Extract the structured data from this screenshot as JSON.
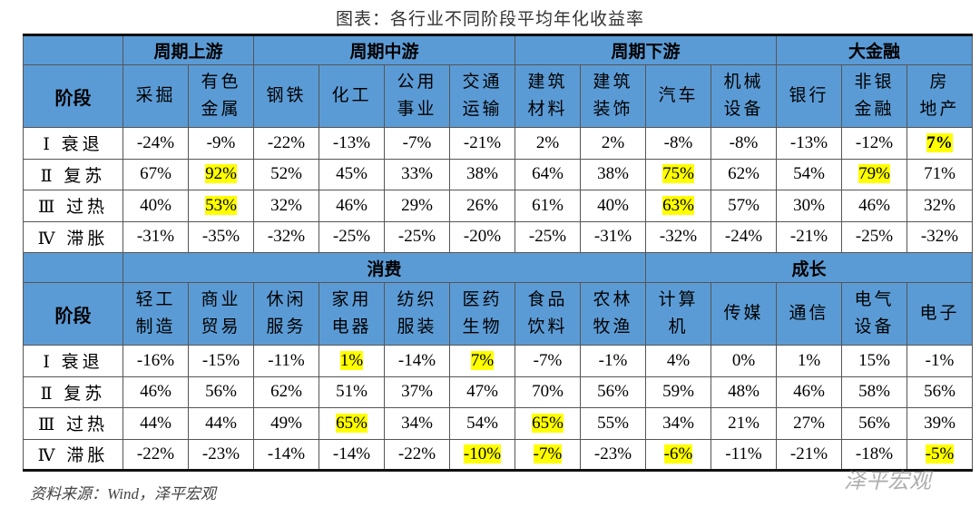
{
  "title": "图表：各行业不同阶段平均年化收益率",
  "source": "资料来源：Wind，泽平宏观",
  "watermark": "泽平宏观",
  "table": {
    "sections": [
      {
        "stage_header": "阶段",
        "groups": [
          {
            "label": "周期上游",
            "columns": [
              [
                "采掘"
              ],
              [
                "有色",
                "金属"
              ]
            ]
          },
          {
            "label": "周期中游",
            "columns": [
              [
                "钢铁"
              ],
              [
                "化工"
              ],
              [
                "公用",
                "事业"
              ],
              [
                "交通",
                "运输"
              ]
            ]
          },
          {
            "label": "周期下游",
            "columns": [
              [
                "建筑",
                "材料"
              ],
              [
                "建筑",
                "装饰"
              ],
              [
                "汽车"
              ],
              [
                "机械",
                "设备"
              ]
            ]
          },
          {
            "label": "大金融",
            "columns": [
              [
                "银行"
              ],
              [
                "非银",
                "金融"
              ],
              [
                "房",
                "地产"
              ]
            ]
          }
        ],
        "rows": [
          {
            "stage": "Ⅰ 衰退",
            "values": [
              "-24%",
              "-9%",
              "-22%",
              "-13%",
              "-7%",
              "-21%",
              "2%",
              "2%",
              "-8%",
              "-8%",
              "-13%",
              "-12%",
              {
                "text": "7%",
                "highlight": true,
                "bold": true
              }
            ]
          },
          {
            "stage": "Ⅱ 复苏",
            "values": [
              "67%",
              {
                "text": "92%",
                "highlight": true
              },
              "52%",
              "45%",
              "33%",
              "38%",
              "64%",
              "38%",
              {
                "text": "75%",
                "highlight": true
              },
              "62%",
              "54%",
              {
                "text": "79%",
                "highlight": true
              },
              "71%"
            ]
          },
          {
            "stage": "Ⅲ 过热",
            "values": [
              "40%",
              {
                "text": "53%",
                "highlight": true
              },
              "32%",
              "46%",
              "29%",
              "26%",
              "61%",
              "40%",
              {
                "text": "63%",
                "highlight": true
              },
              "57%",
              "30%",
              "46%",
              "32%"
            ]
          },
          {
            "stage": "Ⅳ 滞胀",
            "values": [
              "-31%",
              "-35%",
              "-32%",
              "-25%",
              "-25%",
              "-20%",
              "-25%",
              "-31%",
              "-32%",
              "-24%",
              "-21%",
              "-25%",
              "-32%"
            ]
          }
        ]
      },
      {
        "stage_header": "阶段",
        "groups": [
          {
            "label": "消费",
            "columns": [
              [
                "轻工",
                "制造"
              ],
              [
                "商业",
                "贸易"
              ],
              [
                "休闲",
                "服务"
              ],
              [
                "家用",
                "电器"
              ],
              [
                "纺织",
                "服装"
              ],
              [
                "医药",
                "生物"
              ],
              [
                "食品",
                "饮料"
              ],
              [
                "农林",
                "牧渔"
              ]
            ]
          },
          {
            "label": "成长",
            "columns": [
              [
                "计算",
                "机"
              ],
              [
                "传媒"
              ],
              [
                "通信"
              ],
              [
                "电气",
                "设备"
              ],
              [
                "电子"
              ]
            ]
          }
        ],
        "rows": [
          {
            "stage": "Ⅰ 衰退",
            "values": [
              "-16%",
              "-15%",
              "-11%",
              {
                "text": "1%",
                "highlight": true
              },
              "-14%",
              {
                "text": "7%",
                "highlight": true
              },
              "-7%",
              "-1%",
              "4%",
              "0%",
              "1%",
              "15%",
              "-1%"
            ]
          },
          {
            "stage": "Ⅱ 复苏",
            "values": [
              "46%",
              "56%",
              "62%",
              "51%",
              "37%",
              "47%",
              "70%",
              "56%",
              "59%",
              "48%",
              "46%",
              "58%",
              "56%"
            ]
          },
          {
            "stage": "Ⅲ 过热",
            "values": [
              "44%",
              "44%",
              "49%",
              {
                "text": "65%",
                "highlight": true
              },
              "34%",
              "54%",
              {
                "text": "65%",
                "highlight": true
              },
              "55%",
              "34%",
              "21%",
              "27%",
              "56%",
              "39%"
            ]
          },
          {
            "stage": "Ⅳ 滞胀",
            "values": [
              "-22%",
              "-23%",
              "-14%",
              "-14%",
              "-22%",
              {
                "text": "-10%",
                "highlight": true
              },
              {
                "text": "-7%",
                "highlight": true
              },
              "-23%",
              {
                "text": "-6%",
                "highlight": true
              },
              "-11%",
              "-21%",
              "-18%",
              {
                "text": "-5%",
                "highlight": true
              }
            ]
          }
        ]
      }
    ]
  }
}
